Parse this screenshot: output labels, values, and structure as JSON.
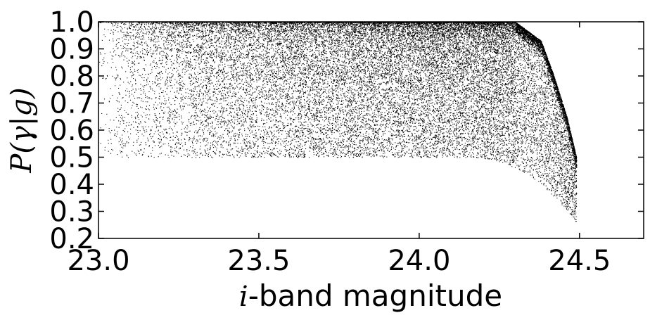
{
  "chart_data": {
    "type": "scatter",
    "title": "",
    "xlabel_var": "i",
    "xlabel_rest": "-band magnitude",
    "ylabel": "P(γ|g)",
    "xlim": [
      23.0,
      24.7
    ],
    "ylim": [
      0.2,
      1.0
    ],
    "xticks": [
      23.0,
      23.5,
      24.0,
      24.5
    ],
    "xtick_labels": [
      "23.0",
      "23.5",
      "24.0",
      "24.5"
    ],
    "yticks": [
      0.2,
      0.3,
      0.4,
      0.5,
      0.6,
      0.7,
      0.8,
      0.9,
      1.0
    ],
    "ytick_labels": [
      "0.2",
      "0.3",
      "0.4",
      "0.5",
      "0.6",
      "0.7",
      "0.8",
      "0.9",
      "1.0"
    ],
    "grid": false,
    "legend": "none",
    "marker_color": "#000000",
    "description_of_distribution": {
      "x_range_points": [
        23.0,
        24.49
      ],
      "upper_band_y": 1.0,
      "lower_envelope_flat_y": 0.5,
      "lower_envelope_end_point": [
        24.49,
        0.26
      ],
      "ridge_points": [
        [
          24.3,
          1.0
        ],
        [
          24.38,
          0.93
        ],
        [
          24.42,
          0.8
        ],
        [
          24.46,
          0.65
        ],
        [
          24.49,
          0.5
        ]
      ]
    }
  }
}
